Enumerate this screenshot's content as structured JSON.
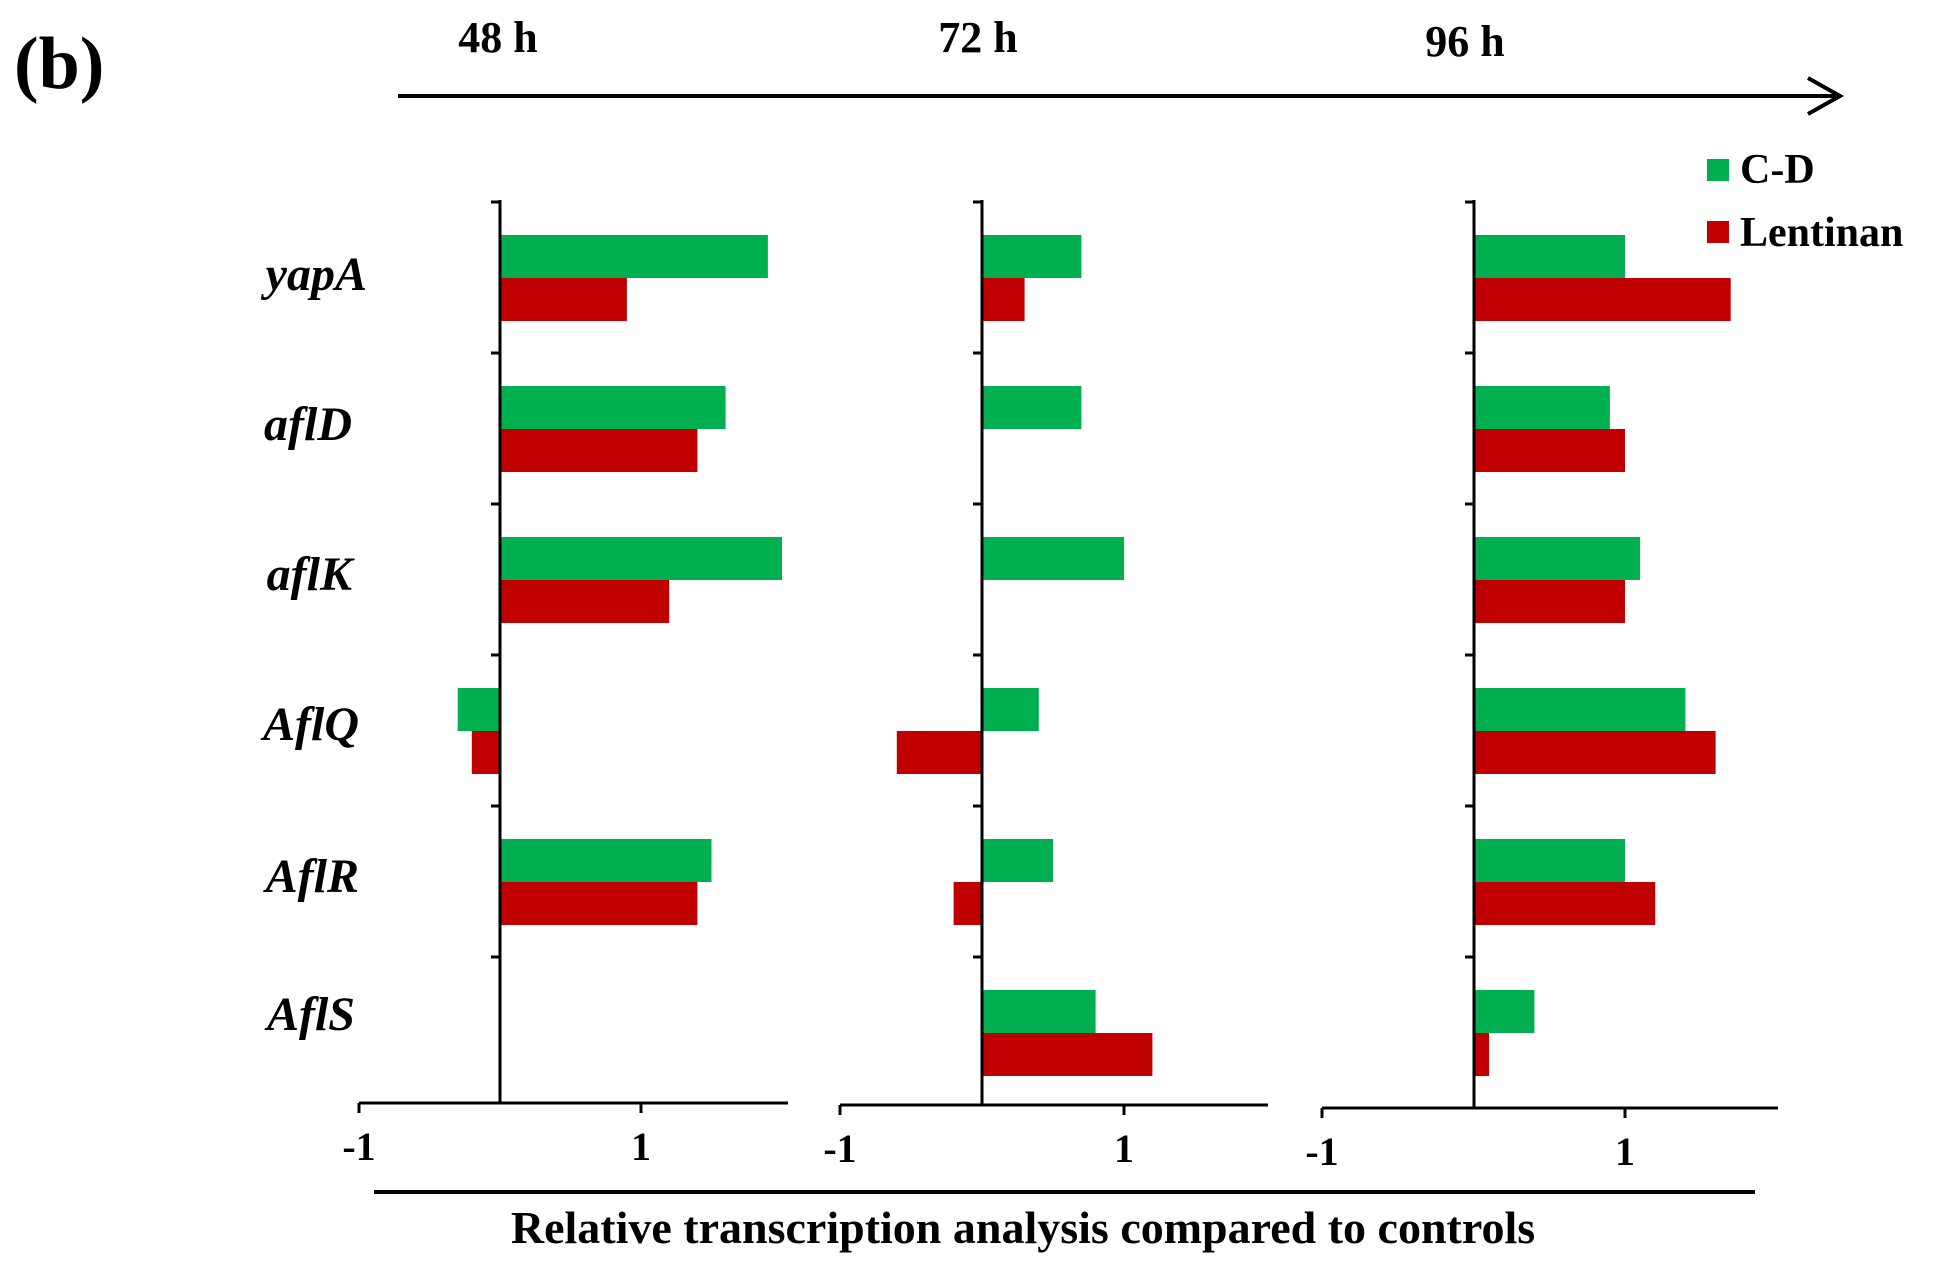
{
  "panel_label": "(b)",
  "timeline": {
    "labels": [
      "48 h",
      "72 h",
      "96 h"
    ]
  },
  "xlabel": "Relative transcription analysis compared to controls",
  "tick_labels": [
    "-1",
    "1"
  ],
  "legend": [
    {
      "name": "C-D",
      "color": "#00b050"
    },
    {
      "name": "Lentinan",
      "color": "#c00000"
    }
  ],
  "chart_data": {
    "type": "bar",
    "orientation": "horizontal",
    "title": "",
    "xlabel": "Relative transcription analysis compared to controls",
    "ylabel": "",
    "categories": [
      "yapA",
      "aflD",
      "aflK",
      "AflQ",
      "AflR",
      "AflS"
    ],
    "xlim": [
      -1,
      2
    ],
    "xticks": [
      -1,
      1
    ],
    "panels": [
      {
        "label": "48 h",
        "series": [
          {
            "name": "C-D",
            "color": "#00b050",
            "values": [
              1.9,
              1.6,
              2.0,
              -0.3,
              1.5,
              0.0
            ]
          },
          {
            "name": "Lentinan",
            "color": "#c00000",
            "values": [
              0.9,
              1.4,
              1.2,
              -0.2,
              1.4,
              0.0
            ]
          }
        ]
      },
      {
        "label": "72 h",
        "series": [
          {
            "name": "C-D",
            "color": "#00b050",
            "values": [
              0.7,
              0.7,
              1.0,
              0.4,
              0.5,
              0.8
            ]
          },
          {
            "name": "Lentinan",
            "color": "#c00000",
            "values": [
              0.3,
              0.0,
              0.0,
              -0.6,
              -0.2,
              1.2
            ]
          }
        ]
      },
      {
        "label": "96 h",
        "series": [
          {
            "name": "C-D",
            "color": "#00b050",
            "values": [
              1.0,
              0.9,
              1.1,
              1.4,
              1.0,
              0.4
            ]
          },
          {
            "name": "Lentinan",
            "color": "#c00000",
            "values": [
              1.7,
              1.0,
              1.0,
              1.6,
              1.2,
              0.1
            ]
          }
        ]
      }
    ]
  }
}
